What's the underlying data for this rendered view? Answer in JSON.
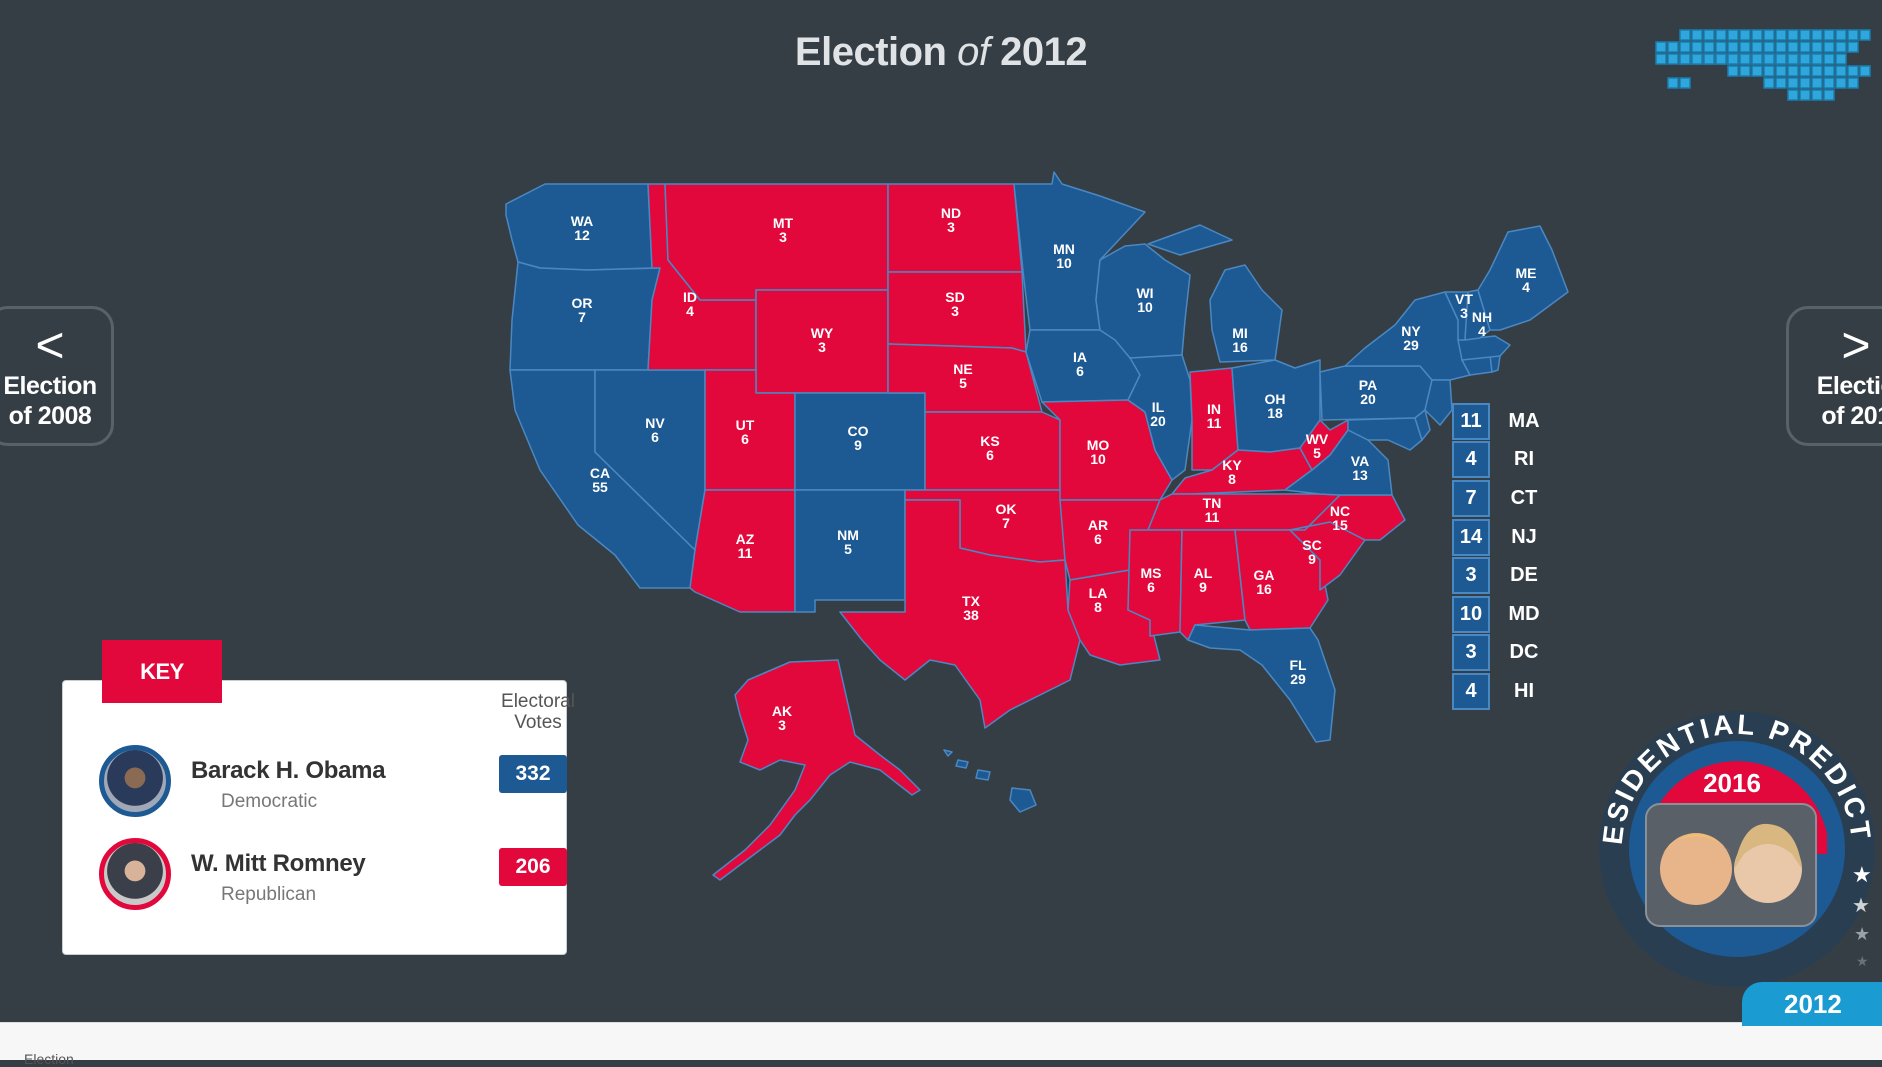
{
  "title": {
    "part1": "Election",
    "part2": "of",
    "part3": "2012"
  },
  "nav": {
    "prev": {
      "arrow": "<",
      "line1": "Election",
      "line2": "of 2008"
    },
    "next": {
      "arrow": ">",
      "line1": "Electio",
      "line2": "of 201"
    }
  },
  "colors": {
    "democratic": "#1d5992",
    "republican": "#e2083c",
    "background": "#363e45"
  },
  "states": {
    "WA": {
      "label": "WA",
      "votes": "12",
      "party": "D"
    },
    "OR": {
      "label": "OR",
      "votes": "7",
      "party": "D"
    },
    "CA": {
      "label": "CA",
      "votes": "55",
      "party": "D"
    },
    "NV": {
      "label": "NV",
      "votes": "6",
      "party": "D"
    },
    "ID": {
      "label": "ID",
      "votes": "4",
      "party": "R"
    },
    "MT": {
      "label": "MT",
      "votes": "3",
      "party": "R"
    },
    "WY": {
      "label": "WY",
      "votes": "3",
      "party": "R"
    },
    "UT": {
      "label": "UT",
      "votes": "6",
      "party": "R"
    },
    "AZ": {
      "label": "AZ",
      "votes": "11",
      "party": "R"
    },
    "CO": {
      "label": "CO",
      "votes": "9",
      "party": "D"
    },
    "NM": {
      "label": "NM",
      "votes": "5",
      "party": "D"
    },
    "ND": {
      "label": "ND",
      "votes": "3",
      "party": "R"
    },
    "SD": {
      "label": "SD",
      "votes": "3",
      "party": "R"
    },
    "NE": {
      "label": "NE",
      "votes": "5",
      "party": "R"
    },
    "KS": {
      "label": "KS",
      "votes": "6",
      "party": "R"
    },
    "OK": {
      "label": "OK",
      "votes": "7",
      "party": "R"
    },
    "TX": {
      "label": "TX",
      "votes": "38",
      "party": "R"
    },
    "MN": {
      "label": "MN",
      "votes": "10",
      "party": "D"
    },
    "IA": {
      "label": "IA",
      "votes": "6",
      "party": "D"
    },
    "MO": {
      "label": "MO",
      "votes": "10",
      "party": "R"
    },
    "AR": {
      "label": "AR",
      "votes": "6",
      "party": "R"
    },
    "LA": {
      "label": "LA",
      "votes": "8",
      "party": "R"
    },
    "WI": {
      "label": "WI",
      "votes": "10",
      "party": "D"
    },
    "IL": {
      "label": "IL",
      "votes": "20",
      "party": "D"
    },
    "MI": {
      "label": "MI",
      "votes": "16",
      "party": "D"
    },
    "IN": {
      "label": "IN",
      "votes": "11",
      "party": "R"
    },
    "OH": {
      "label": "OH",
      "votes": "18",
      "party": "D"
    },
    "KY": {
      "label": "KY",
      "votes": "8",
      "party": "R"
    },
    "TN": {
      "label": "TN",
      "votes": "11",
      "party": "R"
    },
    "MS": {
      "label": "MS",
      "votes": "6",
      "party": "R"
    },
    "AL": {
      "label": "AL",
      "votes": "9",
      "party": "R"
    },
    "GA": {
      "label": "GA",
      "votes": "16",
      "party": "R"
    },
    "FL": {
      "label": "FL",
      "votes": "29",
      "party": "D"
    },
    "SC": {
      "label": "SC",
      "votes": "9",
      "party": "R"
    },
    "NC": {
      "label": "NC",
      "votes": "15",
      "party": "R"
    },
    "VA": {
      "label": "VA",
      "votes": "13",
      "party": "D"
    },
    "WV": {
      "label": "WV",
      "votes": "5",
      "party": "R"
    },
    "PA": {
      "label": "PA",
      "votes": "20",
      "party": "D"
    },
    "NY": {
      "label": "NY",
      "votes": "29",
      "party": "D"
    },
    "VT": {
      "label": "VT",
      "votes": "3",
      "party": "D"
    },
    "NH": {
      "label": "NH",
      "votes": "4",
      "party": "D"
    },
    "ME": {
      "label": "ME",
      "votes": "4",
      "party": "D"
    },
    "AK": {
      "label": "AK",
      "votes": "3",
      "party": "R"
    }
  },
  "small_states": [
    {
      "votes": "11",
      "abbr": "MA"
    },
    {
      "votes": "4",
      "abbr": "RI"
    },
    {
      "votes": "7",
      "abbr": "CT"
    },
    {
      "votes": "14",
      "abbr": "NJ"
    },
    {
      "votes": "3",
      "abbr": "DE"
    },
    {
      "votes": "10",
      "abbr": "MD"
    },
    {
      "votes": "3",
      "abbr": "DC"
    },
    {
      "votes": "4",
      "abbr": "HI"
    }
  ],
  "key": {
    "tab_label": "KEY",
    "header_line1": "Electoral",
    "header_line2": "Votes",
    "candidates": [
      {
        "name": "Barack H. Obama",
        "party": "Democratic",
        "votes": "332"
      },
      {
        "name": "W. Mitt Romney",
        "party": "Republican",
        "votes": "206"
      }
    ]
  },
  "predictor": {
    "arc_text": "PRESIDENTIAL PREDICTOR",
    "year": "2016"
  },
  "year_tab": "2012",
  "bottom_text": "Election"
}
